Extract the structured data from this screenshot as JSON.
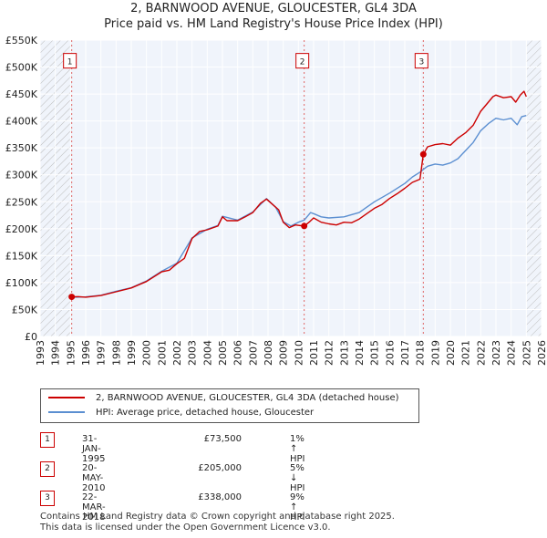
{
  "chart_data": {
    "type": "line",
    "title": "2, BARNWOOD AVENUE, GLOUCESTER, GL4 3DA",
    "subtitle": "Price paid vs. HM Land Registry's House Price Index (HPI)",
    "xlim": [
      1993,
      2026
    ],
    "ylim": [
      0,
      550000
    ],
    "x_ticks": [
      "1993",
      "1994",
      "1995",
      "1996",
      "1997",
      "1998",
      "1999",
      "2000",
      "2001",
      "2002",
      "2003",
      "2004",
      "2005",
      "2006",
      "2007",
      "2008",
      "2009",
      "2010",
      "2011",
      "2012",
      "2013",
      "2014",
      "2015",
      "2016",
      "2017",
      "2018",
      "2019",
      "2020",
      "2021",
      "2022",
      "2023",
      "2024",
      "2025",
      "2026"
    ],
    "y_ticks": [
      {
        "v": 0,
        "label": "£0"
      },
      {
        "v": 50000,
        "label": "£50K"
      },
      {
        "v": 100000,
        "label": "£100K"
      },
      {
        "v": 150000,
        "label": "£150K"
      },
      {
        "v": 200000,
        "label": "£200K"
      },
      {
        "v": 250000,
        "label": "£250K"
      },
      {
        "v": 300000,
        "label": "£300K"
      },
      {
        "v": 350000,
        "label": "£350K"
      },
      {
        "v": 400000,
        "label": "£400K"
      },
      {
        "v": 450000,
        "label": "£450K"
      },
      {
        "v": 500000,
        "label": "£500K"
      },
      {
        "v": 550000,
        "label": "£550K"
      }
    ],
    "hatch_before": 1995.08,
    "hatch_after": 2025.0,
    "series": [
      {
        "name": "2, BARNWOOD AVENUE, GLOUCESTER, GL4 3DA (detached house)",
        "color": "#cc0000",
        "points": [
          [
            1995.08,
            73500
          ],
          [
            1995.5,
            74000
          ],
          [
            1996,
            73000
          ],
          [
            1997,
            76000
          ],
          [
            1998,
            83000
          ],
          [
            1999,
            90000
          ],
          [
            2000,
            102000
          ],
          [
            2001,
            120000
          ],
          [
            2001.5,
            123000
          ],
          [
            2002,
            135000
          ],
          [
            2002.5,
            145000
          ],
          [
            2003,
            182000
          ],
          [
            2003.5,
            195000
          ],
          [
            2004,
            198000
          ],
          [
            2004.7,
            205000
          ],
          [
            2005,
            222000
          ],
          [
            2005.3,
            215000
          ],
          [
            2006,
            215000
          ],
          [
            2006.5,
            222000
          ],
          [
            2007,
            230000
          ],
          [
            2007.5,
            247000
          ],
          [
            2007.9,
            255000
          ],
          [
            2008.3,
            245000
          ],
          [
            2008.7,
            235000
          ],
          [
            2009,
            212000
          ],
          [
            2009.4,
            202000
          ],
          [
            2009.8,
            207000
          ],
          [
            2010.38,
            205000
          ],
          [
            2010.7,
            212000
          ],
          [
            2011,
            220000
          ],
          [
            2011.5,
            212000
          ],
          [
            2012,
            209000
          ],
          [
            2012.5,
            207000
          ],
          [
            2013,
            212000
          ],
          [
            2013.5,
            211000
          ],
          [
            2014,
            218000
          ],
          [
            2014.5,
            228000
          ],
          [
            2015,
            238000
          ],
          [
            2015.5,
            245000
          ],
          [
            2016,
            256000
          ],
          [
            2016.5,
            265000
          ],
          [
            2017,
            275000
          ],
          [
            2017.5,
            286000
          ],
          [
            2018.0,
            292000
          ],
          [
            2018.22,
            338000
          ],
          [
            2018.5,
            352000
          ],
          [
            2019,
            356000
          ],
          [
            2019.5,
            358000
          ],
          [
            2020,
            355000
          ],
          [
            2020.5,
            368000
          ],
          [
            2021,
            378000
          ],
          [
            2021.5,
            392000
          ],
          [
            2022,
            418000
          ],
          [
            2022.5,
            435000
          ],
          [
            2022.8,
            445000
          ],
          [
            2023,
            448000
          ],
          [
            2023.5,
            443000
          ],
          [
            2024,
            445000
          ],
          [
            2024.3,
            435000
          ],
          [
            2024.6,
            448000
          ],
          [
            2024.85,
            455000
          ],
          [
            2025.0,
            445000
          ]
        ]
      },
      {
        "name": "HPI: Average price, detached house, Gloucester",
        "color": "#5b8fd1",
        "points": [
          [
            1995.08,
            72800
          ],
          [
            1996,
            73500
          ],
          [
            1997,
            76500
          ],
          [
            1998,
            84000
          ],
          [
            1999,
            90500
          ],
          [
            2000,
            103000
          ],
          [
            2001,
            121000
          ],
          [
            2002,
            136000
          ],
          [
            2003,
            183000
          ],
          [
            2004,
            199000
          ],
          [
            2004.7,
            206000
          ],
          [
            2005,
            223000
          ],
          [
            2006,
            216000
          ],
          [
            2007,
            231000
          ],
          [
            2007.9,
            256000
          ],
          [
            2008.5,
            240000
          ],
          [
            2009,
            213000
          ],
          [
            2009.5,
            205000
          ],
          [
            2010,
            212000
          ],
          [
            2010.38,
            216000
          ],
          [
            2010.8,
            230000
          ],
          [
            2011,
            228000
          ],
          [
            2011.5,
            222000
          ],
          [
            2012,
            220000
          ],
          [
            2013,
            222000
          ],
          [
            2014,
            230000
          ],
          [
            2014.5,
            240000
          ],
          [
            2015,
            250000
          ],
          [
            2016,
            266000
          ],
          [
            2017,
            284000
          ],
          [
            2017.5,
            296000
          ],
          [
            2018.0,
            305000
          ],
          [
            2018.22,
            310000
          ],
          [
            2018.5,
            316000
          ],
          [
            2019,
            320000
          ],
          [
            2019.5,
            318000
          ],
          [
            2020,
            322000
          ],
          [
            2020.5,
            330000
          ],
          [
            2021,
            345000
          ],
          [
            2021.5,
            360000
          ],
          [
            2022,
            382000
          ],
          [
            2022.5,
            395000
          ],
          [
            2023,
            405000
          ],
          [
            2023.5,
            402000
          ],
          [
            2024,
            405000
          ],
          [
            2024.4,
            393000
          ],
          [
            2024.7,
            408000
          ],
          [
            2025.0,
            410000
          ]
        ]
      }
    ],
    "transactions": [
      {
        "id": "1",
        "x": 1995.08,
        "price": 73500,
        "date": "31-JAN-1995",
        "price_label": "£73,500",
        "hpi": "1% ↑ HPI"
      },
      {
        "id": "2",
        "x": 2010.38,
        "price": 205000,
        "date": "20-MAY-2010",
        "price_label": "£205,000",
        "hpi": "5% ↓ HPI"
      },
      {
        "id": "3",
        "x": 2018.22,
        "price": 338000,
        "date": "22-MAR-2018",
        "price_label": "£338,000",
        "hpi": "9% ↑ HPI"
      }
    ]
  },
  "legend": {
    "red_label": "2, BARNWOOD AVENUE, GLOUCESTER, GL4 3DA (detached house)",
    "blue_label": "HPI: Average price, detached house, Gloucester"
  },
  "footer": {
    "line1": "Contains HM Land Registry data © Crown copyright and database right 2025.",
    "line2": "This data is licensed under the Open Government Licence v3.0."
  }
}
